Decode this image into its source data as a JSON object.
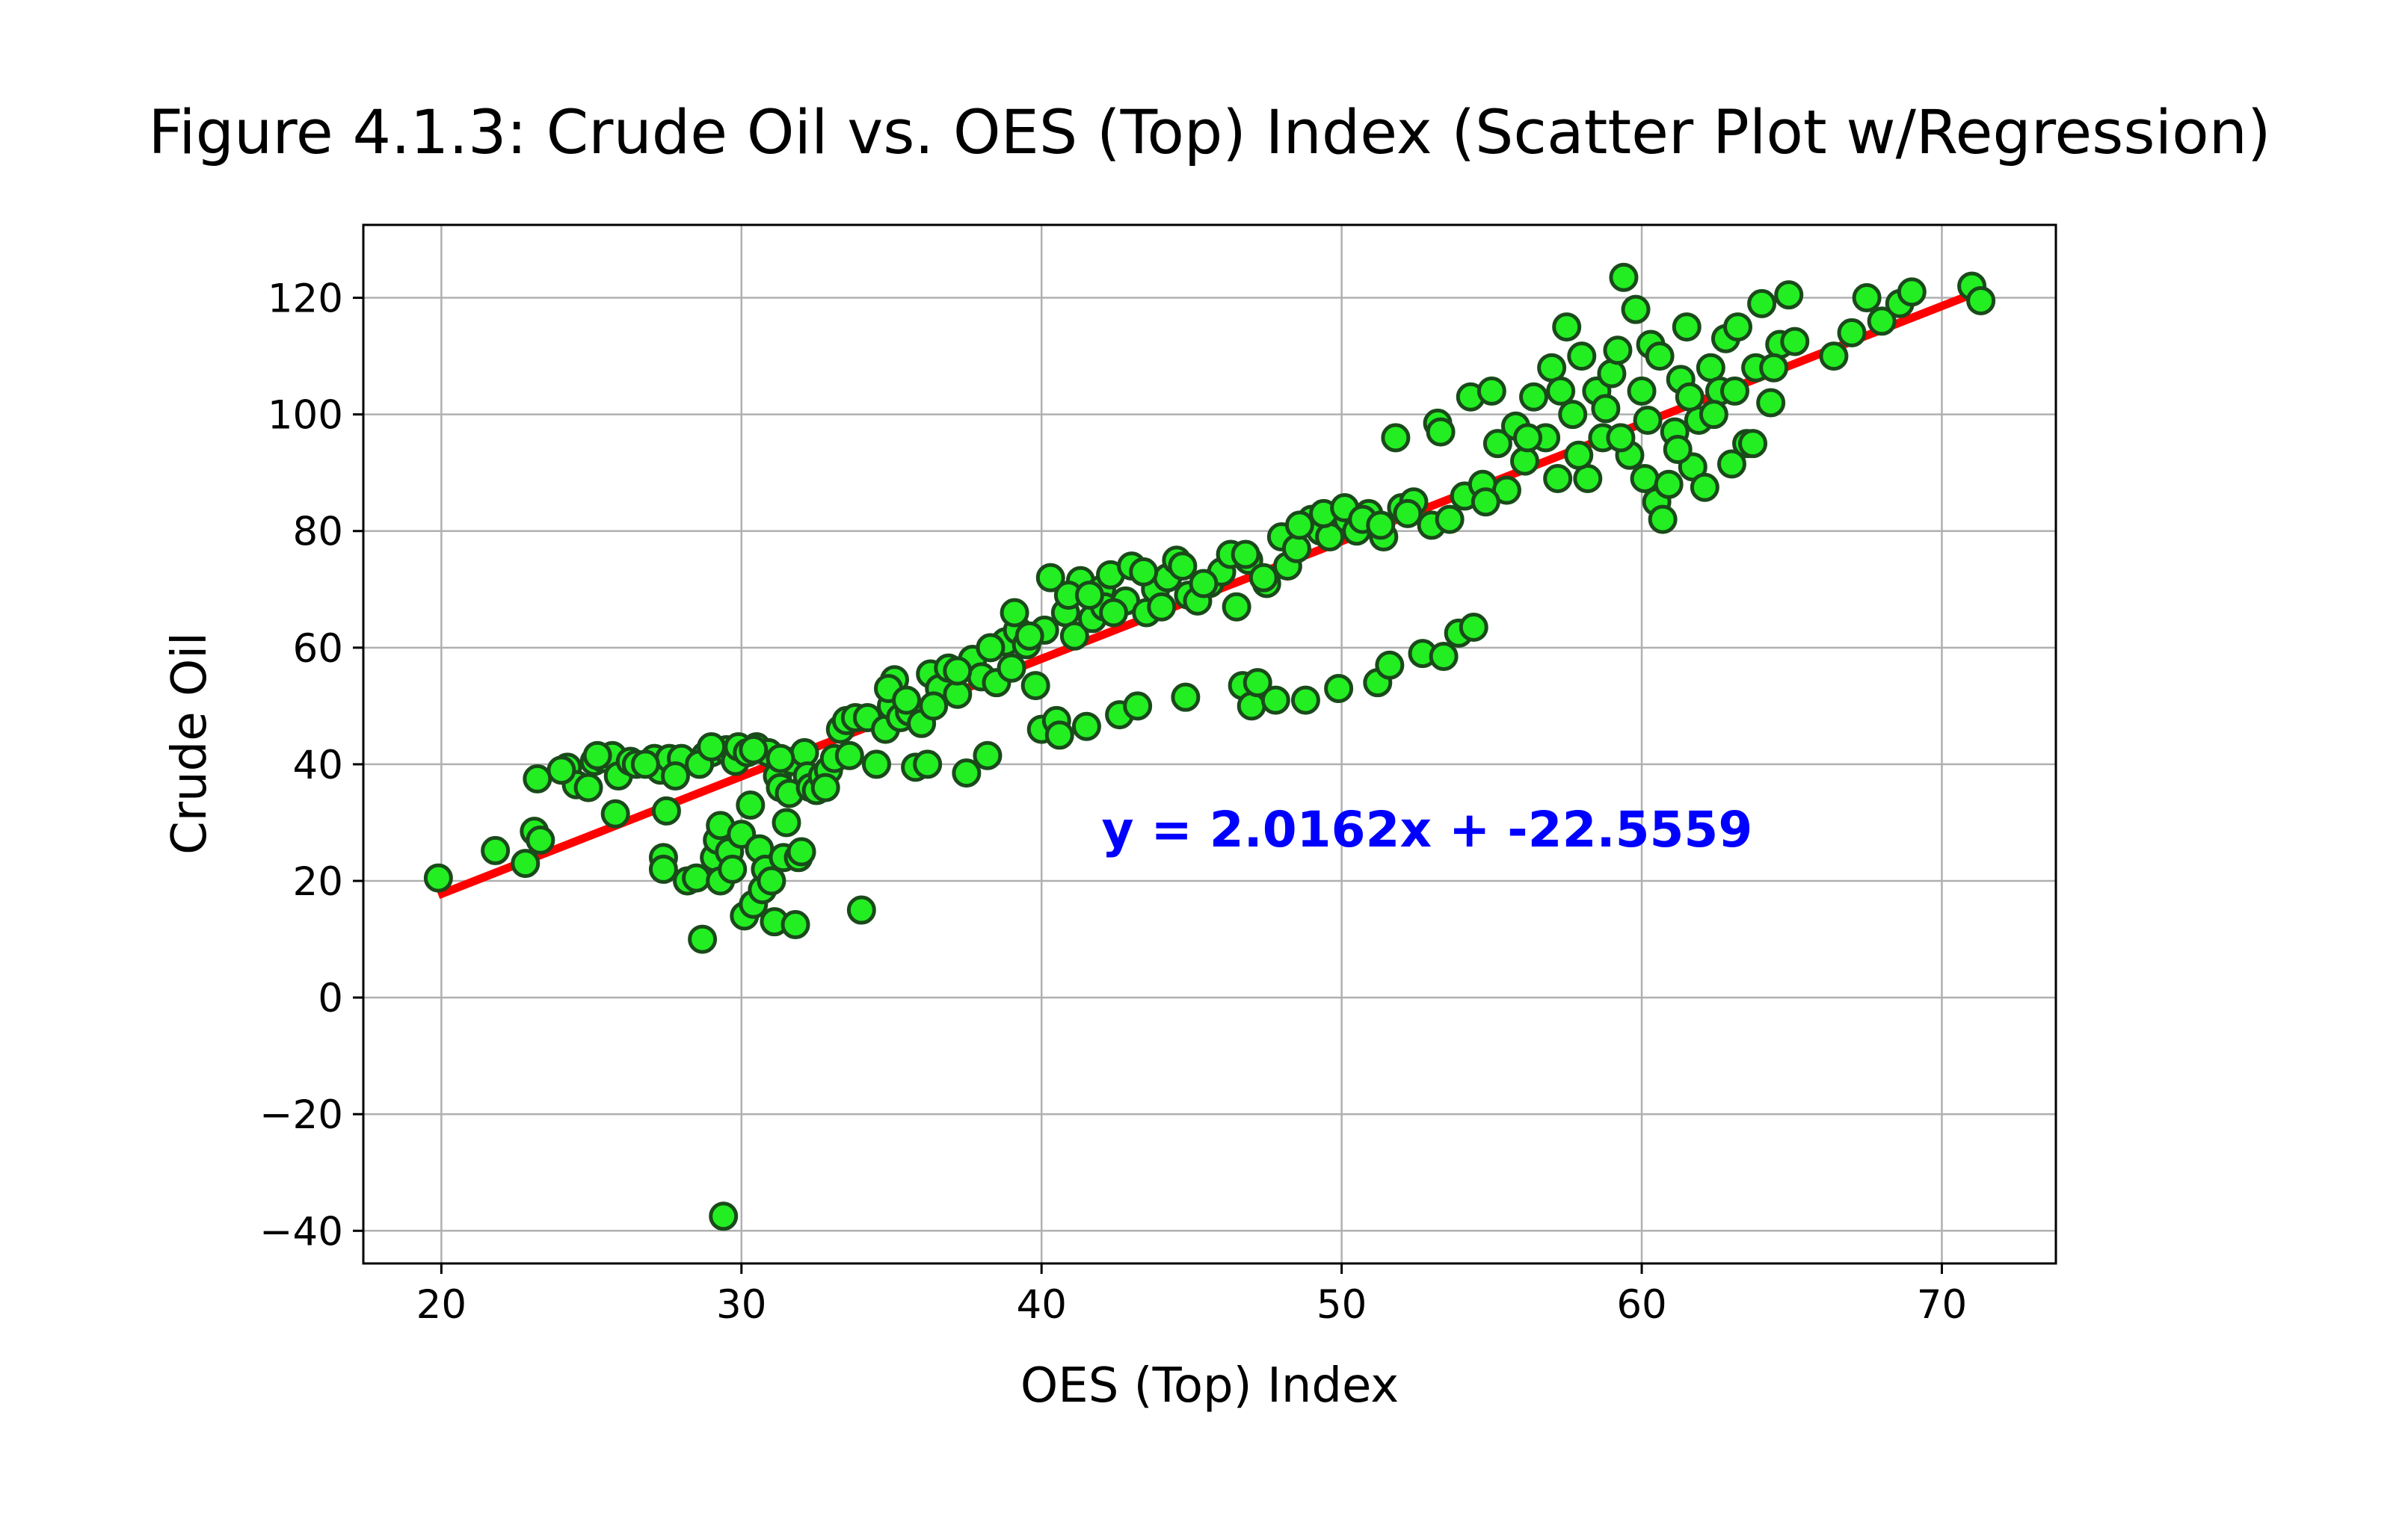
{
  "chart_data": {
    "type": "scatter",
    "title": "Figure 4.1.3: Crude Oil vs. OES (Top) Index (Scatter Plot w/Regression)",
    "xlabel": "OES (Top) Index",
    "ylabel": "Crude Oil",
    "xlim": [
      17.4,
      73.8
    ],
    "ylim": [
      -45.6,
      132.5
    ],
    "xticks": [
      20,
      30,
      40,
      50,
      60,
      70
    ],
    "yticks": [
      -40,
      -20,
      0,
      20,
      40,
      60,
      80,
      100,
      120
    ],
    "ytick_labels": [
      "−40",
      "−20",
      "0",
      "20",
      "40",
      "60",
      "80",
      "100",
      "120"
    ],
    "grid": true,
    "marker_color": "#22ee22",
    "marker_edge_color": "#1a4a1a",
    "regression": {
      "slope": 2.0162,
      "intercept": -22.5559,
      "x_range": [
        19.9,
        71.3
      ],
      "color": "#ff0000",
      "equation_label": "y = 2.0162x + -22.5559",
      "label_color": "#0000ff",
      "label_x": 42,
      "label_y": 29
    },
    "points": [
      [
        19.9,
        20.5
      ],
      [
        21.8,
        25.2
      ],
      [
        22.8,
        23
      ],
      [
        23.1,
        28.5
      ],
      [
        23.2,
        37.5
      ],
      [
        23.3,
        27
      ],
      [
        24.2,
        39.5
      ],
      [
        24.5,
        36.5
      ],
      [
        24.9,
        36
      ],
      [
        25.1,
        40.5
      ],
      [
        25.4,
        41
      ],
      [
        25.7,
        41.5
      ],
      [
        25.8,
        31.5
      ],
      [
        25.9,
        38
      ],
      [
        26.3,
        40.5
      ],
      [
        26.5,
        40
      ],
      [
        27.1,
        41
      ],
      [
        27.3,
        39
      ],
      [
        27.4,
        24
      ],
      [
        27.5,
        32
      ],
      [
        27.4,
        22
      ],
      [
        27.6,
        41
      ],
      [
        28,
        41
      ],
      [
        28.2,
        20
      ],
      [
        28.5,
        20.5
      ],
      [
        28.7,
        10
      ],
      [
        28.8,
        41.5
      ],
      [
        29,
        42
      ],
      [
        29.1,
        24
      ],
      [
        29.2,
        27
      ],
      [
        29.3,
        29.5
      ],
      [
        29.3,
        20
      ],
      [
        29.4,
        -37.5
      ],
      [
        29.5,
        42.5
      ],
      [
        29.6,
        25
      ],
      [
        29.7,
        22
      ],
      [
        29.8,
        40.5
      ],
      [
        29.9,
        43
      ],
      [
        30,
        28
      ],
      [
        30.1,
        14
      ],
      [
        30.2,
        42
      ],
      [
        30.3,
        33
      ],
      [
        30.4,
        16
      ],
      [
        30.5,
        43
      ],
      [
        30.6,
        25.5
      ],
      [
        30.7,
        18.5
      ],
      [
        30.8,
        22
      ],
      [
        30.9,
        42
      ],
      [
        31,
        20
      ],
      [
        31.1,
        13
      ],
      [
        31.2,
        38
      ],
      [
        31.3,
        36
      ],
      [
        31.4,
        24
      ],
      [
        31.5,
        30
      ],
      [
        31.6,
        35
      ],
      [
        31.7,
        40.5
      ],
      [
        31.8,
        12.5
      ],
      [
        31.9,
        24
      ],
      [
        32,
        25
      ],
      [
        32.1,
        42
      ],
      [
        32.2,
        38
      ],
      [
        32.3,
        36
      ],
      [
        32.5,
        35.5
      ],
      [
        32.7,
        38
      ],
      [
        32.9,
        39
      ],
      [
        33.1,
        41
      ],
      [
        33.3,
        46
      ],
      [
        33.5,
        47.5
      ],
      [
        33.8,
        48
      ],
      [
        34,
        15
      ],
      [
        34.2,
        48
      ],
      [
        34.5,
        40
      ],
      [
        34.8,
        46
      ],
      [
        35,
        50
      ],
      [
        35.1,
        54.5
      ],
      [
        35.3,
        48
      ],
      [
        35.6,
        49
      ],
      [
        35.8,
        39.5
      ],
      [
        36,
        47
      ],
      [
        36.2,
        40
      ],
      [
        36.3,
        55.5
      ],
      [
        36.6,
        53
      ],
      [
        36.9,
        56.5
      ],
      [
        37.2,
        52
      ],
      [
        37.5,
        38.5
      ],
      [
        37.7,
        58
      ],
      [
        38,
        55
      ],
      [
        38.2,
        41.5
      ],
      [
        38.5,
        54
      ],
      [
        38.8,
        61
      ],
      [
        39,
        56.5
      ],
      [
        39.2,
        63
      ],
      [
        39.5,
        60.5
      ],
      [
        39.8,
        53.5
      ],
      [
        40,
        46
      ],
      [
        40.1,
        63
      ],
      [
        40.3,
        72
      ],
      [
        40.5,
        47.5
      ],
      [
        40.6,
        45
      ],
      [
        40.8,
        66
      ],
      [
        41.1,
        62
      ],
      [
        41.3,
        71.5
      ],
      [
        41.5,
        46.5
      ],
      [
        41.7,
        65
      ],
      [
        42,
        70
      ],
      [
        42.1,
        67
      ],
      [
        42.3,
        72.5
      ],
      [
        42.6,
        48.5
      ],
      [
        42.8,
        68
      ],
      [
        43,
        74
      ],
      [
        43.2,
        50
      ],
      [
        43.5,
        66
      ],
      [
        43.8,
        70
      ],
      [
        44.2,
        72
      ],
      [
        44.5,
        75
      ],
      [
        44.8,
        51.5
      ],
      [
        44.9,
        69
      ],
      [
        45.2,
        68
      ],
      [
        45.6,
        71
      ],
      [
        46,
        73
      ],
      [
        46.3,
        76
      ],
      [
        46.5,
        67
      ],
      [
        46.7,
        53.5
      ],
      [
        46.9,
        75
      ],
      [
        47,
        50
      ],
      [
        47.2,
        54
      ],
      [
        47.5,
        71
      ],
      [
        47.8,
        51
      ],
      [
        48,
        79
      ],
      [
        48.2,
        74
      ],
      [
        48.5,
        77
      ],
      [
        48.8,
        51
      ],
      [
        49,
        82
      ],
      [
        49.3,
        80
      ],
      [
        49.6,
        79
      ],
      [
        49.9,
        53
      ],
      [
        50.2,
        82
      ],
      [
        50.5,
        80
      ],
      [
        50.9,
        83
      ],
      [
        51.2,
        54
      ],
      [
        51.4,
        79
      ],
      [
        51.6,
        57
      ],
      [
        51.8,
        96
      ],
      [
        52,
        84
      ],
      [
        52.4,
        85
      ],
      [
        52.7,
        59
      ],
      [
        53,
        81
      ],
      [
        53.2,
        98.5
      ],
      [
        53.4,
        58.5
      ],
      [
        53.6,
        82
      ],
      [
        53.9,
        62.5
      ],
      [
        54.1,
        86
      ],
      [
        54.3,
        103
      ],
      [
        54.4,
        63.5
      ],
      [
        54.7,
        88
      ],
      [
        55,
        104
      ],
      [
        55.2,
        95
      ],
      [
        55.5,
        87
      ],
      [
        55.8,
        98
      ],
      [
        56.1,
        92
      ],
      [
        56.4,
        103
      ],
      [
        56.8,
        96
      ],
      [
        57,
        108
      ],
      [
        57.2,
        89
      ],
      [
        57.5,
        115
      ],
      [
        57.7,
        100
      ],
      [
        58,
        110
      ],
      [
        58.2,
        89
      ],
      [
        58.5,
        104
      ],
      [
        58.7,
        96
      ],
      [
        59,
        107
      ],
      [
        59.2,
        111
      ],
      [
        59.4,
        123.5
      ],
      [
        59.6,
        93
      ],
      [
        59.8,
        118
      ],
      [
        60,
        104
      ],
      [
        60.1,
        89
      ],
      [
        60.3,
        112
      ],
      [
        60.5,
        85
      ],
      [
        60.7,
        82
      ],
      [
        60.9,
        88
      ],
      [
        61.1,
        97
      ],
      [
        61.3,
        106
      ],
      [
        61.5,
        115
      ],
      [
        61.7,
        91
      ],
      [
        61.9,
        99
      ],
      [
        62.1,
        87.5
      ],
      [
        62.3,
        108
      ],
      [
        62.6,
        104
      ],
      [
        62.8,
        113
      ],
      [
        63,
        91.5
      ],
      [
        63.2,
        115
      ],
      [
        63.5,
        95
      ],
      [
        63.8,
        108
      ],
      [
        64,
        119
      ],
      [
        64.3,
        102
      ],
      [
        64.6,
        112
      ],
      [
        64.9,
        120.5
      ],
      [
        65.1,
        112.5
      ],
      [
        66.4,
        110
      ],
      [
        67,
        114
      ],
      [
        67.5,
        120
      ],
      [
        68,
        116
      ],
      [
        68.6,
        119
      ],
      [
        69,
        121
      ],
      [
        71,
        122
      ],
      [
        71.3,
        119.5
      ],
      [
        24,
        39
      ],
      [
        25.2,
        41.5
      ],
      [
        26.8,
        40
      ],
      [
        27.8,
        38
      ],
      [
        28.6,
        40
      ],
      [
        29,
        43
      ],
      [
        30.4,
        42.5
      ],
      [
        31.3,
        41
      ],
      [
        32.8,
        36
      ],
      [
        33.6,
        41.5
      ],
      [
        34.9,
        53
      ],
      [
        35.5,
        51
      ],
      [
        36.4,
        50
      ],
      [
        37.2,
        56
      ],
      [
        38.3,
        60
      ],
      [
        39.1,
        66
      ],
      [
        39.6,
        62
      ],
      [
        40.9,
        69
      ],
      [
        41.6,
        69
      ],
      [
        42.4,
        66
      ],
      [
        43.4,
        73
      ],
      [
        44,
        67
      ],
      [
        44.7,
        74
      ],
      [
        45.4,
        71
      ],
      [
        46.8,
        76
      ],
      [
        47.4,
        72
      ],
      [
        48.6,
        81
      ],
      [
        49.4,
        83
      ],
      [
        50.1,
        84
      ],
      [
        50.7,
        82
      ],
      [
        51.3,
        81
      ],
      [
        52.2,
        83
      ],
      [
        53.3,
        97
      ],
      [
        54.8,
        85
      ],
      [
        56.2,
        96
      ],
      [
        57.3,
        104
      ],
      [
        57.9,
        93
      ],
      [
        58.8,
        101
      ],
      [
        59.3,
        96
      ],
      [
        60.2,
        99
      ],
      [
        60.6,
        110
      ],
      [
        61.2,
        94
      ],
      [
        61.6,
        103
      ],
      [
        62.4,
        100
      ],
      [
        63.1,
        104
      ],
      [
        63.7,
        95
      ],
      [
        64.4,
        108
      ]
    ]
  }
}
